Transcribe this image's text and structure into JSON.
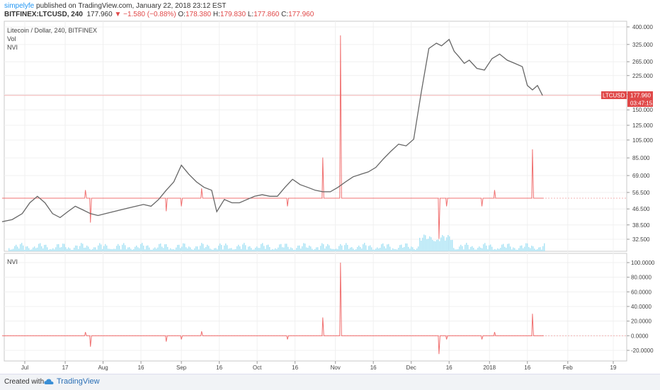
{
  "header": {
    "author": "simpelyfe",
    "published": "published on TradingView.com, January 22, 2018 23:12 EST",
    "symbol": "BITFINEX:LTCUSD, 240",
    "price": "177.960",
    "change": "−1.580 (−0.88%)",
    "o_label": "O:",
    "o_value": "178.380",
    "h_label": "H:",
    "h_value": "179.830",
    "l_label": "L:",
    "l_value": "177.860",
    "c_label": "C:",
    "c_value": "177.960"
  },
  "pane1": {
    "title": "Litecoin / Dollar, 240, BITFINEX",
    "vol_label": "Vol",
    "nvi_label": "NVI"
  },
  "pane2": {
    "nvi_label": "NVI"
  },
  "price_badge": {
    "symbol": "LTCUSD",
    "value": "177.960",
    "countdown": "03:47:15"
  },
  "footer": {
    "created_with": "Created with",
    "brand": "TradingView"
  },
  "colors": {
    "up_candle": "#5a5a5a",
    "down_candle": "#888888",
    "nvi_line": "#f07070",
    "volume": "#a9e3f5",
    "badge": "#e04848"
  },
  "chart_data": [
    {
      "type": "line",
      "title": "Litecoin / Dollar, 240, BITFINEX",
      "scale": "log",
      "y_ticks": [
        400,
        325,
        265,
        225,
        180,
        150,
        125,
        105,
        85,
        69,
        56.5,
        46.5,
        38.5,
        32.5
      ],
      "y_tick_labels": [
        "400.000",
        "325.000",
        "265.000",
        "225.000",
        "180.000",
        "150.000",
        "125.000",
        "105.000",
        "85.000",
        "69.000",
        "56.500",
        "46.500",
        "38.500",
        "32.500"
      ],
      "x_tick_labels": [
        "Jul",
        "17",
        "Aug",
        "16",
        "Sep",
        "16",
        "Oct",
        "16",
        "Nov",
        "16",
        "Dec",
        "16",
        "2018",
        "16",
        "Feb",
        "19"
      ],
      "x_ticks": [
        "2017-07-01",
        "2017-07-17",
        "2017-08-01",
        "2017-08-16",
        "2017-09-01",
        "2017-09-16",
        "2017-10-01",
        "2017-10-16",
        "2017-11-01",
        "2017-11-16",
        "2017-12-01",
        "2017-12-16",
        "2018-01-01",
        "2018-01-16",
        "2018-02-01",
        "2018-02-19"
      ],
      "series": [
        {
          "name": "LTCUSD",
          "x": [
            "2017-06-22",
            "2017-06-26",
            "2017-06-30",
            "2017-07-03",
            "2017-07-06",
            "2017-07-09",
            "2017-07-12",
            "2017-07-15",
            "2017-07-18",
            "2017-07-21",
            "2017-07-24",
            "2017-07-27",
            "2017-07-30",
            "2017-08-02",
            "2017-08-05",
            "2017-08-08",
            "2017-08-11",
            "2017-08-14",
            "2017-08-17",
            "2017-08-20",
            "2017-08-23",
            "2017-08-26",
            "2017-08-29",
            "2017-09-01",
            "2017-09-04",
            "2017-09-07",
            "2017-09-10",
            "2017-09-13",
            "2017-09-15",
            "2017-09-18",
            "2017-09-21",
            "2017-09-24",
            "2017-09-27",
            "2017-09-30",
            "2017-10-03",
            "2017-10-06",
            "2017-10-09",
            "2017-10-12",
            "2017-10-15",
            "2017-10-18",
            "2017-10-21",
            "2017-10-24",
            "2017-10-27",
            "2017-10-30",
            "2017-11-02",
            "2017-11-05",
            "2017-11-08",
            "2017-11-11",
            "2017-11-14",
            "2017-11-17",
            "2017-11-20",
            "2017-11-23",
            "2017-11-26",
            "2017-11-29",
            "2017-12-02",
            "2017-12-05",
            "2017-12-08",
            "2017-12-11",
            "2017-12-13",
            "2017-12-16",
            "2017-12-18",
            "2017-12-20",
            "2017-12-22",
            "2017-12-24",
            "2017-12-27",
            "2017-12-30",
            "2018-01-02",
            "2018-01-05",
            "2018-01-08",
            "2018-01-11",
            "2018-01-14",
            "2018-01-16",
            "2018-01-18",
            "2018-01-20",
            "2018-01-22"
          ],
          "y": [
            40,
            41,
            44,
            50,
            54,
            50,
            44,
            42,
            45,
            48,
            46,
            44,
            43,
            44,
            45,
            46,
            47,
            48,
            49,
            48,
            52,
            58,
            64,
            78,
            70,
            64,
            60,
            58,
            45,
            52,
            50,
            50,
            52,
            54,
            55,
            54,
            54,
            60,
            66,
            62,
            60,
            58,
            57,
            57,
            60,
            64,
            68,
            70,
            72,
            76,
            84,
            92,
            100,
            98,
            106,
            185,
            310,
            330,
            320,
            345,
            300,
            280,
            260,
            270,
            245,
            240,
            275,
            290,
            270,
            260,
            250,
            200,
            190,
            200,
            178
          ]
        }
      ]
    },
    {
      "type": "line",
      "title": "NVI",
      "y_ticks": [
        100,
        80,
        60,
        40,
        20,
        0,
        -20
      ],
      "y_tick_labels": [
        "100.0000",
        "80.0000",
        "60.0000",
        "40.0000",
        "20.0000",
        "0.0000",
        "-20.0000"
      ],
      "series": [
        {
          "name": "NVI",
          "x": [
            "2017-06-22",
            "2017-07-25",
            "2017-07-27",
            "2017-08-26",
            "2017-09-01",
            "2017-09-09",
            "2017-10-13",
            "2017-10-27",
            "2017-11-03",
            "2017-12-12",
            "2017-12-15",
            "2017-12-29",
            "2018-01-03",
            "2018-01-18",
            "2018-01-22"
          ],
          "y": [
            0,
            5,
            -15,
            -8,
            -5,
            6,
            -5,
            25,
            100,
            -25,
            -5,
            -5,
            5,
            30,
            0
          ]
        }
      ]
    }
  ]
}
